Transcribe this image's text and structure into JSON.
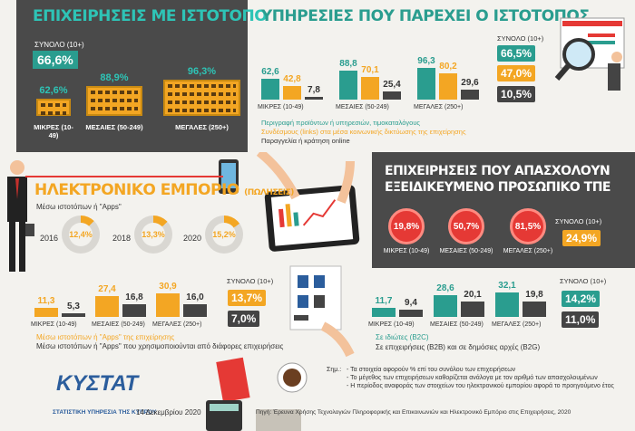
{
  "colors": {
    "teal": "#2a9d8f",
    "orange": "#f3a623",
    "dark": "#4a4a4a",
    "red": "#e53935"
  },
  "website": {
    "title": "ΕΠΙΧΕΙΡΗΣΕΙΣ ΜΕ ΙΣΤΟΤΟΠΟ",
    "total_label": "ΣΥΝΟΛΟ (10+)",
    "total_value": "66,6%",
    "groups": [
      {
        "label": "ΜΙΚΡΕΣ (10-49)",
        "value": "62,6%"
      },
      {
        "label": "ΜΕΣΑΙΕΣ (50-249)",
        "value": "88,9%"
      },
      {
        "label": "ΜΕΓΑΛΕΣ (250+)",
        "value": "96,3%"
      }
    ]
  },
  "services": {
    "title": "ΥΠΗΡΕΣΙΕΣ ΠΟΥ ΠΑΡΕΧΕΙ Ο ΙΣΤΟΤΟΠΟΣ",
    "total_label": "ΣΥΝΟΛΟ (10+)",
    "totals": [
      "66,5%",
      "47,0%",
      "10,5%"
    ],
    "legend": [
      "Περιγραφή προϊόντων ή υπηρεσιών, τιμοκαταλόγους",
      "Συνδέσμους (links) στα μέσα κοινωνικής δικτύωσης της επιχείρησης",
      "Παραγγελία ή κράτηση online"
    ]
  },
  "ecommerce": {
    "title": "ΗΛΕΚΤΡΟΝΙΚΟ ΕΜΠΟΡΙΟ",
    "title_suffix": "(ΠΩΛΗΣΕΙΣ)",
    "subtitle": "Μέσω ιστοτόπων ή \"Apps\"",
    "years": [
      {
        "year": "2016",
        "value": "12,4%"
      },
      {
        "year": "2018",
        "value": "13,3%"
      },
      {
        "year": "2020",
        "value": "15,2%"
      }
    ],
    "total_label": "ΣΥΝΟΛΟ (10+)",
    "totals": [
      "13,7%",
      "7,0%"
    ],
    "legend": [
      "Μέσω ιστοτόπων ή \"Apps\" της επιχείρησης",
      "Μέσω ιστοτόπων ή \"Apps\" που χρησιμοποιούνται από διάφορες επιχειρήσεις"
    ]
  },
  "ict": {
    "title_line1": "ΕΠΙΧΕΙΡΗΣΕΙΣ ΠΟΥ ΑΠΑΣΧΟΛΟΥΝ",
    "title_line2": "ΕΞΕΙΔΙΚΕΥΜΕΝΟ ΠΡΟΣΩΠΙΚΟ ΤΠΕ",
    "groups": [
      {
        "label": "ΜΙΚΡΕΣ (10-49)",
        "value": "19,8%"
      },
      {
        "label": "ΜΕΣΑΙΕΣ (50-249)",
        "value": "50,7%"
      },
      {
        "label": "ΜΕΓΑΛΕΣ (250+)",
        "value": "81,5%"
      }
    ],
    "total_label": "ΣΥΝΟΛΟ (10+)",
    "total_value": "24,9%"
  },
  "customers": {
    "total_label": "ΣΥΝΟΛΟ (10+)",
    "totals": [
      "14,2%",
      "11,0%"
    ],
    "legend": [
      "Σε ιδιώτες (B2C)",
      "Σε επιχειρήσεις (B2B) και σε δημόσιες αρχές (B2G)"
    ]
  },
  "chart_data": [
    {
      "type": "bar",
      "title": "ΕΠΙΧΕΙΡΗΣΕΙΣ ΜΕ ΙΣΤΟΤΟΠΟ",
      "categories": [
        "ΜΙΚΡΕΣ (10-49)",
        "ΜΕΣΑΙΕΣ (50-249)",
        "ΜΕΓΑΛΕΣ (250+)"
      ],
      "values": [
        62.6,
        88.9,
        96.3
      ]
    },
    {
      "type": "bar",
      "title": "ΥΠΗΡΕΣΙΕΣ ΠΟΥ ΠΑΡΕΧΕΙ Ο ΙΣΤΟΤΟΠΟΣ",
      "categories": [
        "ΜΙΚΡΕΣ (10-49)",
        "ΜΕΣΑΙΕΣ (50-249)",
        "ΜΕΓΑΛΕΣ (250+)"
      ],
      "series": [
        {
          "name": "Περιγραφή προϊόντων ή υπηρεσιών, τιμοκαταλόγους",
          "values": [
            62.6,
            88.8,
            96.3
          ]
        },
        {
          "name": "Συνδέσμους (links) στα μέσα κοινωνικής δικτύωσης της επιχείρησης",
          "values": [
            42.8,
            70.1,
            80.2
          ]
        },
        {
          "name": "Παραγγελία ή κράτηση online",
          "values": [
            7.8,
            25.4,
            29.6
          ]
        }
      ]
    },
    {
      "type": "bar",
      "title": "ΗΛΕΚΤΡΟΝΙΚΟ ΕΜΠΟΡΙΟ",
      "categories": [
        "ΜΙΚΡΕΣ (10-49)",
        "ΜΕΣΑΙΕΣ (50-249)",
        "ΜΕΓΑΛΕΣ (250+)"
      ],
      "series": [
        {
          "name": "Μέσω ιστοτόπων ή \"Apps\" της επιχείρησης",
          "values": [
            11.3,
            27.4,
            30.9
          ]
        },
        {
          "name": "Μέσω ιστοτόπων ή \"Apps\" που χρησιμοποιούνται από διάφορες επιχειρήσεις",
          "values": [
            5.3,
            16.8,
            16.0
          ]
        }
      ]
    },
    {
      "type": "bar",
      "categories": [
        "ΜΙΚΡΕΣ (10-49)",
        "ΜΕΣΑΙΕΣ (50-249)",
        "ΜΕΓΑΛΕΣ (250+)"
      ],
      "series": [
        {
          "name": "Σε ιδιώτες (B2C)",
          "values": [
            11.7,
            28.6,
            32.1
          ]
        },
        {
          "name": "Σε επιχειρήσεις (B2B) και σε δημόσιες αρχές (B2G)",
          "values": [
            9.4,
            20.1,
            19.8
          ]
        }
      ]
    }
  ],
  "footer": {
    "notes_title": "Σημ.:",
    "notes": [
      "- Τα στοιχεία αφορούν % επί του συνόλου των επιχειρήσεων",
      "- Το μέγεθος των επιχειρήσεων καθορίζεται ανάλογα με τον αριθμό των απασχολουμένων",
      "- Η περίοδος αναφοράς των στοιχείων του ηλεκτρονικού εμπορίου αφορά το προηγούμενο έτος"
    ],
    "logo": "ΚΥΣΤΑΤ",
    "agency": "ΣΤΑΤΙΣΤΙΚΗ ΥΠΗΡΕΣΙΑ ΤΗΣ ΚΥΠΡΟΥ",
    "date": "14 Δεκεμβρίου 2020",
    "source": "Πηγή: Έρευνα Χρήσης Τεχνολογιών Πληροφορικής και Επικοινωνιών και Ηλεκτρονικό Εμπόριο στις Επιχειρήσεις, 2020"
  }
}
